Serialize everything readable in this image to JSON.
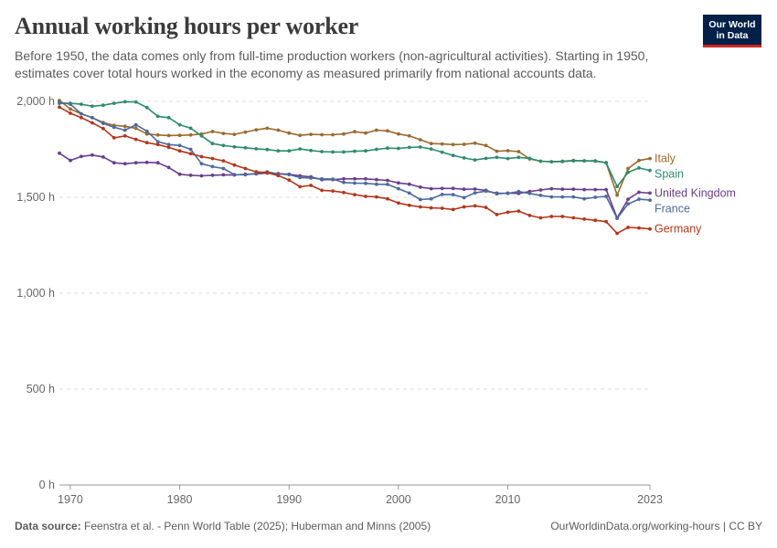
{
  "title": "Annual working hours per worker",
  "subtitle": "Before 1950, the data comes only from full-time production workers (non-agricultural activities). Starting in 1950, estimates cover total hours worked in the economy as measured primarily from national accounts data.",
  "logo": {
    "line1": "Our World",
    "line2": "in Data"
  },
  "footer": {
    "source_label": "Data source:",
    "source_text": "Feenstra et al. - Penn World Table (2025); Huberman and Minns (2005)",
    "link_text": "OurWorldinData.org/working-hours",
    "license": "CC BY"
  },
  "chart_data": {
    "type": "line",
    "title": "Annual working hours per worker",
    "xlabel": "",
    "ylabel": "",
    "xlim": [
      1969,
      2023
    ],
    "ylim": [
      0,
      2000
    ],
    "y_ticks": [
      0,
      500,
      1000,
      1500,
      2000
    ],
    "y_tick_labels": [
      "0 h",
      "500 h",
      "1,000 h",
      "1,500 h",
      "2,000 h"
    ],
    "x_ticks": [
      1970,
      1980,
      1990,
      2000,
      2010,
      2023
    ],
    "x_tick_labels": [
      "1970",
      "1980",
      "1990",
      "2000",
      "2010",
      "2023"
    ],
    "grid": true,
    "series": [
      {
        "name": "Italy",
        "color": "#9a6a2e",
        "x": [
          1969,
          1970,
          1971,
          1972,
          1973,
          1974,
          1975,
          1976,
          1977,
          1978,
          1979,
          1980,
          1981,
          1982,
          1983,
          1984,
          1985,
          1986,
          1987,
          1988,
          1989,
          1990,
          1991,
          1992,
          1993,
          1994,
          1995,
          1996,
          1997,
          1998,
          1999,
          2000,
          2001,
          2002,
          2003,
          2004,
          2005,
          2006,
          2007,
          2008,
          2009,
          2010,
          2011,
          2012,
          2013,
          2014,
          2015,
          2016,
          2017,
          2018,
          2019,
          2020,
          2021,
          2022,
          2023
        ],
        "values": [
          2005,
          1960,
          1935,
          1915,
          1890,
          1875,
          1870,
          1860,
          1830,
          1825,
          1822,
          1823,
          1825,
          1830,
          1843,
          1833,
          1828,
          1840,
          1852,
          1860,
          1850,
          1835,
          1823,
          1828,
          1826,
          1826,
          1830,
          1842,
          1835,
          1850,
          1846,
          1830,
          1820,
          1800,
          1780,
          1778,
          1775,
          1776,
          1782,
          1770,
          1740,
          1743,
          1738,
          1700,
          1688,
          1685,
          1688,
          1692,
          1690,
          1688,
          1680,
          1512,
          1650,
          1692,
          1702
        ]
      },
      {
        "name": "Spain",
        "color": "#2e8c6d",
        "x": [
          1969,
          1970,
          1971,
          1972,
          1973,
          1974,
          1975,
          1976,
          1977,
          1978,
          1979,
          1980,
          1981,
          1982,
          1983,
          1984,
          1985,
          1986,
          1987,
          1988,
          1989,
          1990,
          1991,
          1992,
          1993,
          1994,
          1995,
          1996,
          1997,
          1998,
          1999,
          2000,
          2001,
          2002,
          2003,
          2004,
          2005,
          2006,
          2007,
          2008,
          2009,
          2010,
          2011,
          2012,
          2013,
          2014,
          2015,
          2016,
          2017,
          2018,
          2019,
          2020,
          2021,
          2022,
          2023
        ],
        "values": [
          1990,
          1990,
          1985,
          1975,
          1980,
          1990,
          1998,
          1997,
          1968,
          1922,
          1915,
          1878,
          1860,
          1820,
          1780,
          1770,
          1763,
          1758,
          1753,
          1749,
          1742,
          1742,
          1752,
          1744,
          1738,
          1736,
          1736,
          1740,
          1742,
          1750,
          1756,
          1755,
          1760,
          1762,
          1752,
          1735,
          1718,
          1705,
          1695,
          1703,
          1708,
          1702,
          1708,
          1703,
          1688,
          1685,
          1686,
          1690,
          1690,
          1690,
          1680,
          1556,
          1630,
          1653,
          1640
        ]
      },
      {
        "name": "United Kingdom",
        "color": "#6b3d8d",
        "x": [
          1969,
          1970,
          1971,
          1972,
          1973,
          1974,
          1975,
          1976,
          1977,
          1978,
          1979,
          1980,
          1981,
          1982,
          1983,
          1984,
          1985,
          1986,
          1987,
          1988,
          1989,
          1990,
          1991,
          1992,
          1993,
          1994,
          1995,
          1996,
          1997,
          1998,
          1999,
          2000,
          2001,
          2002,
          2003,
          2004,
          2005,
          2006,
          2007,
          2008,
          2009,
          2010,
          2011,
          2012,
          2013,
          2014,
          2015,
          2016,
          2017,
          2018,
          2019,
          2020,
          2021,
          2022,
          2023
        ],
        "values": [
          1730,
          1692,
          1713,
          1720,
          1710,
          1680,
          1675,
          1680,
          1682,
          1680,
          1655,
          1620,
          1615,
          1612,
          1615,
          1617,
          1616,
          1620,
          1622,
          1626,
          1624,
          1620,
          1612,
          1606,
          1592,
          1592,
          1596,
          1596,
          1596,
          1592,
          1588,
          1575,
          1568,
          1553,
          1545,
          1546,
          1546,
          1542,
          1543,
          1536,
          1518,
          1522,
          1520,
          1530,
          1538,
          1545,
          1542,
          1542,
          1540,
          1540,
          1540,
          1392,
          1490,
          1526,
          1522
        ]
      },
      {
        "name": "France",
        "color": "#4c6a9c",
        "x": [
          1969,
          1970,
          1971,
          1972,
          1973,
          1974,
          1975,
          1976,
          1977,
          1978,
          1979,
          1980,
          1981,
          1982,
          1983,
          1984,
          1985,
          1986,
          1987,
          1988,
          1989,
          1990,
          1991,
          1992,
          1993,
          1994,
          1995,
          1996,
          1997,
          1998,
          1999,
          2000,
          2001,
          2002,
          2003,
          2004,
          2005,
          2006,
          2007,
          2008,
          2009,
          2010,
          2011,
          2012,
          2013,
          2014,
          2015,
          2016,
          2017,
          2018,
          2019,
          2020,
          2021,
          2022,
          2023
        ],
        "values": [
          1995,
          1985,
          1935,
          1915,
          1885,
          1865,
          1850,
          1878,
          1845,
          1790,
          1775,
          1770,
          1750,
          1675,
          1660,
          1650,
          1618,
          1617,
          1625,
          1633,
          1622,
          1618,
          1603,
          1600,
          1596,
          1595,
          1577,
          1574,
          1573,
          1568,
          1567,
          1545,
          1522,
          1488,
          1492,
          1515,
          1514,
          1498,
          1523,
          1532,
          1522,
          1520,
          1530,
          1520,
          1510,
          1502,
          1502,
          1502,
          1492,
          1500,
          1505,
          1390,
          1465,
          1490,
          1485
        ]
      },
      {
        "name": "Germany",
        "color": "#b3361a",
        "x": [
          1969,
          1970,
          1971,
          1972,
          1973,
          1974,
          1975,
          1976,
          1977,
          1978,
          1979,
          1980,
          1981,
          1982,
          1983,
          1984,
          1985,
          1986,
          1987,
          1988,
          1989,
          1990,
          1991,
          1992,
          1993,
          1994,
          1995,
          1996,
          1997,
          1998,
          1999,
          2000,
          2001,
          2002,
          2003,
          2004,
          2005,
          2006,
          2007,
          2008,
          2009,
          2010,
          2011,
          2012,
          2013,
          2014,
          2015,
          2016,
          2017,
          2018,
          2019,
          2020,
          2021,
          2022,
          2023
        ],
        "values": [
          1970,
          1938,
          1915,
          1888,
          1858,
          1810,
          1820,
          1802,
          1785,
          1775,
          1760,
          1742,
          1727,
          1712,
          1702,
          1690,
          1668,
          1650,
          1633,
          1628,
          1613,
          1590,
          1555,
          1562,
          1536,
          1533,
          1525,
          1514,
          1505,
          1502,
          1492,
          1470,
          1458,
          1450,
          1445,
          1443,
          1436,
          1450,
          1455,
          1447,
          1410,
          1422,
          1428,
          1405,
          1393,
          1400,
          1400,
          1393,
          1386,
          1380,
          1373,
          1312,
          1343,
          1340,
          1335
        ]
      }
    ]
  }
}
